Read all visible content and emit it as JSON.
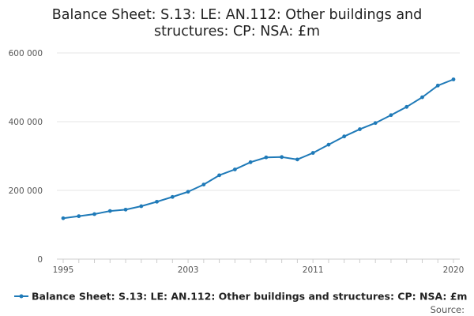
{
  "chart_data": {
    "type": "line",
    "title": "Balance Sheet: S.13: LE: AN.112: Other buildings and structures: CP: NSA: £m",
    "title_lines": [
      "Balance Sheet: S.13: LE: AN.112: Other buildings and",
      "structures: CP: NSA: £m"
    ],
    "xlabel": "",
    "ylabel": "",
    "x": [
      1995,
      1996,
      1997,
      1998,
      1999,
      2000,
      2001,
      2002,
      2003,
      2004,
      2005,
      2006,
      2007,
      2008,
      2009,
      2010,
      2011,
      2012,
      2013,
      2014,
      2015,
      2016,
      2017,
      2018,
      2019,
      2020
    ],
    "x_tick_labels": [
      "1995",
      "2003",
      "2011",
      "2020"
    ],
    "y_tick_labels": [
      "0",
      "200 000",
      "400 000",
      "600 000"
    ],
    "ylim": [
      0,
      600000
    ],
    "grid": "horizontal",
    "legend_position": "bottom",
    "series": [
      {
        "name": "Balance Sheet: S.13: LE: AN.112: Other buildings and structures: CP: NSA: £m",
        "color": "#1f7ab8",
        "values": [
          119000,
          125000,
          131000,
          140000,
          144000,
          154000,
          167000,
          181000,
          196000,
          217000,
          244000,
          261000,
          282000,
          296000,
          297000,
          290000,
          309000,
          333000,
          357000,
          378000,
          396000,
          419000,
          443000,
          471000,
          505000,
          523000
        ]
      }
    ],
    "source_label": "Source:"
  }
}
